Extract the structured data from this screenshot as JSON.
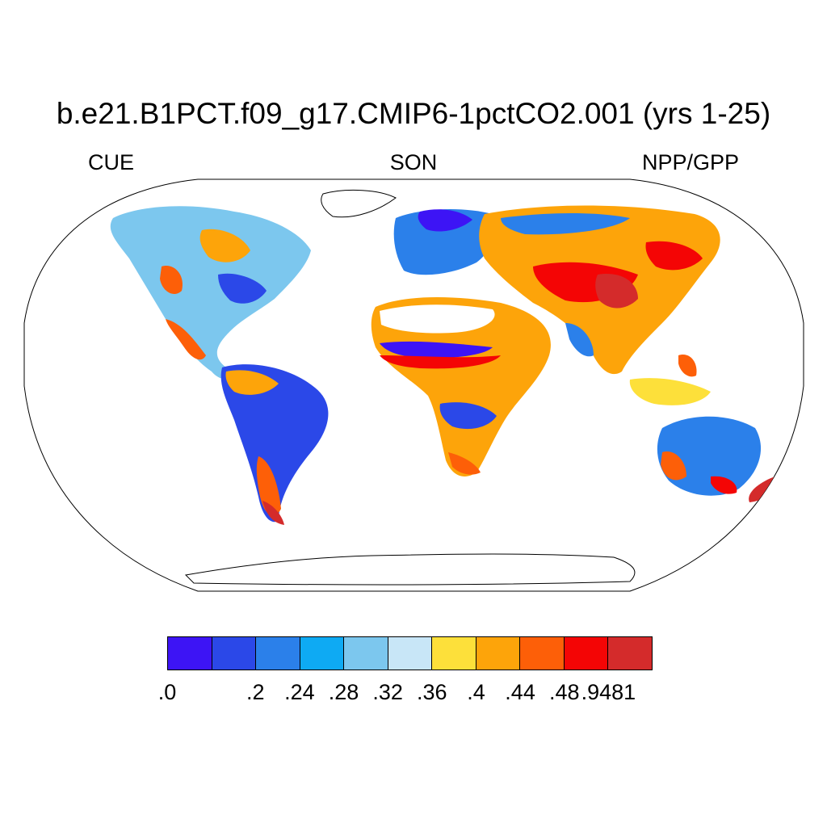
{
  "title": "b.e21.B1PCT.f09_g17.CMIP6-1pctCO2.001 (yrs 1-25)",
  "left_label": "CUE",
  "center_label": "SON",
  "right_label": "NPP/GPP",
  "colorbar": {
    "colors": [
      "#3d14f5",
      "#2b48e8",
      "#2b80ea",
      "#0eaaf3",
      "#7cc7ee",
      "#c8e6f7",
      "#fde03a",
      "#fda40a",
      "#fd5f08",
      "#f40505",
      "#d42b2b"
    ],
    "labels": [
      ".0",
      ".2",
      ".24",
      ".28",
      ".32",
      ".36",
      ".4",
      ".44",
      ".48",
      ".9481"
    ]
  },
  "map": {
    "projection": "Robinson",
    "land_color": "#ffffff",
    "coast_color": "#000000"
  }
}
